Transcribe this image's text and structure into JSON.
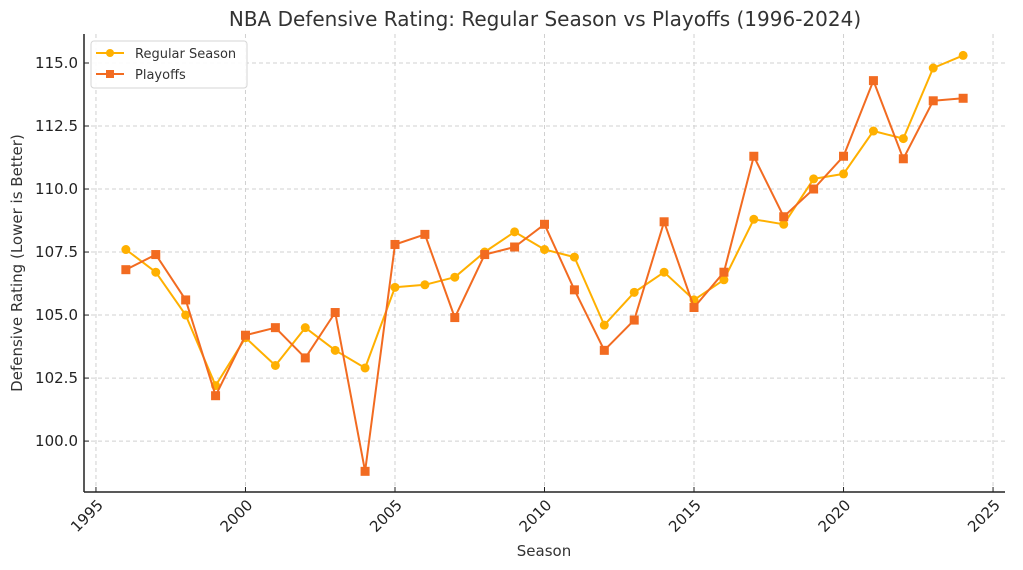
{
  "chart_data": {
    "type": "line",
    "title": "NBA Defensive Rating: Regular Season vs Playoffs (1996-2024)",
    "xlabel": "Season",
    "ylabel": "Defensive Rating (Lower is Better)",
    "xlim": [
      1994.6,
      2025.4
    ],
    "ylim": [
      97.98,
      116.15
    ],
    "xticks": [
      1995,
      2000,
      2005,
      2010,
      2015,
      2020,
      2025
    ],
    "xtick_labels": [
      "1995",
      "2000",
      "2005",
      "2010",
      "2015",
      "2020",
      "2025"
    ],
    "yticks": [
      100.0,
      102.5,
      105.0,
      107.5,
      110.0,
      112.5,
      115.0
    ],
    "ytick_labels": [
      "100.0",
      "102.5",
      "105.0",
      "107.5",
      "110.0",
      "112.5",
      "115.0"
    ],
    "grid": true,
    "legend_position": "top-left",
    "x": [
      1996,
      1997,
      1998,
      1999,
      2000,
      2001,
      2002,
      2003,
      2004,
      2005,
      2006,
      2007,
      2008,
      2009,
      2010,
      2011,
      2012,
      2013,
      2014,
      2015,
      2016,
      2017,
      2018,
      2019,
      2020,
      2021,
      2022,
      2023,
      2024
    ],
    "series": [
      {
        "name": "Regular Season",
        "marker": "circle",
        "color": "#FFB000",
        "values": [
          107.6,
          106.7,
          105.0,
          102.2,
          104.1,
          103.0,
          104.5,
          103.6,
          102.9,
          106.1,
          106.2,
          106.5,
          107.5,
          108.3,
          107.6,
          107.3,
          104.6,
          105.9,
          106.7,
          105.6,
          106.4,
          108.8,
          108.6,
          110.4,
          110.6,
          112.3,
          112.0,
          114.8,
          115.3
        ]
      },
      {
        "name": "Playoffs",
        "marker": "square",
        "color": "#F26B21",
        "values": [
          106.8,
          107.4,
          105.6,
          101.8,
          104.2,
          104.5,
          103.3,
          105.1,
          98.8,
          107.8,
          108.2,
          104.9,
          107.4,
          107.7,
          108.6,
          106.0,
          103.6,
          104.8,
          108.7,
          105.3,
          106.7,
          111.3,
          108.9,
          110.0,
          111.3,
          114.3,
          111.2,
          113.5,
          113.6
        ]
      }
    ]
  }
}
